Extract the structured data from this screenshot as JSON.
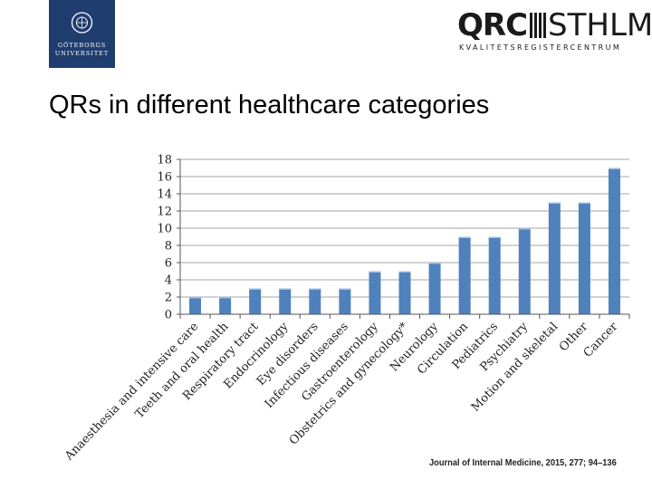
{
  "slide": {
    "title": "QRs in different healthcare categories",
    "citation": "Journal of Internal Medicine, 2015, 277; 94–136"
  },
  "logos": {
    "university_line1": "GÖTEBORGS",
    "university_line2": "UNIVERSITET",
    "qrc_bold": "QRC",
    "qrc_thin": "STHLM",
    "qrc_subtitle": "KVALITETSREGISTERCENTRUM"
  },
  "colors": {
    "bar": "#4f81bd",
    "grid": "#a6a6a6",
    "logo_blue": "#1f3d6e"
  },
  "chart_data": {
    "type": "bar",
    "title": "",
    "xlabel": "",
    "ylabel": "",
    "ylim": [
      0,
      18
    ],
    "yticks": [
      0,
      2,
      4,
      6,
      8,
      10,
      12,
      14,
      16,
      18
    ],
    "grid": true,
    "categories": [
      "Anaesthesia and intensive care",
      "Teeth and oral health",
      "Respiratory tract",
      "Endocrinology",
      "Eye disorders",
      "Infectious diseases",
      "Gastroenterology",
      "Obstetrics and gynecology*",
      "Neurology",
      "Circulation",
      "Pediatrics",
      "Psychiatry",
      "Motion and skeletal",
      "Other",
      "Cancer"
    ],
    "values": [
      2,
      2,
      3,
      3,
      3,
      3,
      5,
      5,
      6,
      9,
      9,
      10,
      13,
      13,
      17
    ]
  }
}
